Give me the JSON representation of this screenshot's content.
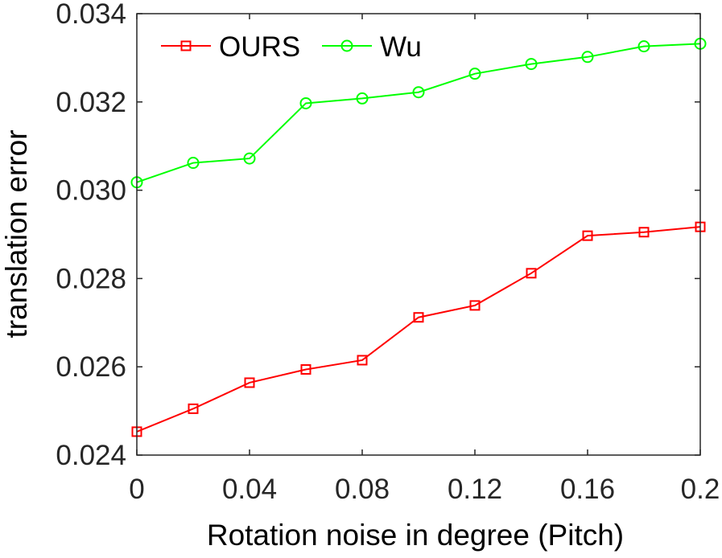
{
  "chart_data": {
    "type": "line",
    "xlabel": "Rotation noise in degree (Pitch)",
    "ylabel": "translation error",
    "xlim": [
      0,
      0.2
    ],
    "ylim": [
      0.024,
      0.034
    ],
    "x": [
      0,
      0.02,
      0.04,
      0.06,
      0.08,
      0.1,
      0.12,
      0.14,
      0.16,
      0.18,
      0.2
    ],
    "x_ticks": [
      0,
      0.04,
      0.08,
      0.12,
      0.16,
      0.2
    ],
    "x_tick_labels": [
      "0",
      "0.04",
      "0.08",
      "0.12",
      "0.16",
      "0.2"
    ],
    "y_ticks": [
      0.024,
      0.026,
      0.028,
      0.03,
      0.032,
      0.034
    ],
    "y_tick_labels": [
      "0.024",
      "0.026",
      "0.028",
      "0.030",
      "0.032",
      "0.034"
    ],
    "grid": false,
    "legend": {
      "placement": "top-left",
      "orientation": "horizontal"
    },
    "series": [
      {
        "name": "OURS",
        "color": "#ff0000",
        "marker": "square",
        "values": [
          0.02453,
          0.02505,
          0.02564,
          0.02594,
          0.02615,
          0.02712,
          0.02739,
          0.02812,
          0.02897,
          0.02905,
          0.02917
        ]
      },
      {
        "name": "Wu",
        "color": "#00ff00",
        "marker": "circle",
        "values": [
          0.03018,
          0.03062,
          0.03072,
          0.03197,
          0.03208,
          0.03222,
          0.03264,
          0.03286,
          0.03302,
          0.03326,
          0.03332
        ]
      }
    ]
  }
}
